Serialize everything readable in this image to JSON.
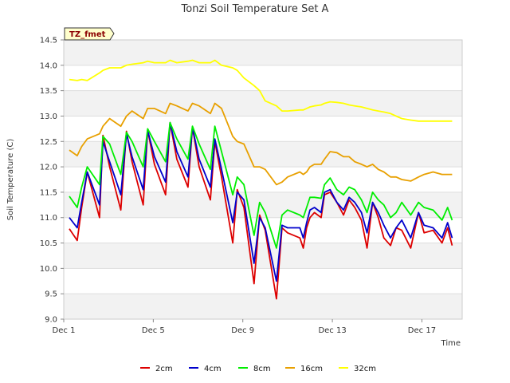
{
  "chart_data": {
    "type": "line",
    "title": "Tonzi Soil Temperature Set A",
    "xlabel": "Time",
    "ylabel": "Soil Temperature (C)",
    "site_tag": "TZ_fmet",
    "xlim": [
      1.0,
      18.8
    ],
    "ylim": [
      9.0,
      14.5
    ],
    "y_ticks": [
      "9.0",
      "9.5",
      "10.0",
      "10.5",
      "11.0",
      "11.5",
      "12.0",
      "12.5",
      "13.0",
      "13.5",
      "14.0",
      "14.5"
    ],
    "x_ticks": [
      {
        "value": 1,
        "label": "Dec 1"
      },
      {
        "value": 5,
        "label": "Dec 5"
      },
      {
        "value": 9,
        "label": "Dec 9"
      },
      {
        "value": 13,
        "label": "Dec 13"
      },
      {
        "value": 17,
        "label": "Dec 17"
      }
    ],
    "legend": [
      "2cm",
      "4cm",
      "8cm",
      "16cm",
      "32cm"
    ],
    "x": [
      1.25,
      1.6,
      1.8,
      2.05,
      2.6,
      2.75,
      3.05,
      3.55,
      3.8,
      4.05,
      4.55,
      4.75,
      5.05,
      5.55,
      5.75,
      6.05,
      6.55,
      6.75,
      7.05,
      7.55,
      7.75,
      8.05,
      8.55,
      8.75,
      9.05,
      9.5,
      9.75,
      10.0,
      10.5,
      10.75,
      11.0,
      11.55,
      11.7,
      11.85,
      12.0,
      12.2,
      12.5,
      12.65,
      12.9,
      13.2,
      13.5,
      13.75,
      14.0,
      14.3,
      14.55,
      14.8,
      15.05,
      15.3,
      15.6,
      15.85,
      16.1,
      16.5,
      16.85,
      17.1,
      17.5,
      17.9,
      18.15,
      18.35
    ],
    "series": [
      {
        "name": "2cm",
        "color": "#dd0000",
        "values": [
          10.78,
          10.55,
          11.2,
          11.9,
          11.0,
          12.62,
          12.0,
          11.15,
          12.7,
          12.1,
          11.25,
          12.72,
          12.05,
          11.45,
          12.87,
          12.15,
          11.6,
          12.78,
          12.0,
          11.35,
          12.5,
          11.8,
          10.5,
          11.55,
          11.2,
          9.7,
          11.05,
          10.75,
          9.4,
          10.8,
          10.7,
          10.6,
          10.4,
          10.8,
          11.0,
          11.1,
          11.0,
          11.45,
          11.5,
          11.3,
          11.05,
          11.35,
          11.2,
          10.95,
          10.4,
          11.3,
          11.0,
          10.6,
          10.45,
          10.8,
          10.75,
          10.4,
          11.1,
          10.7,
          10.75,
          10.5,
          10.8,
          10.45
        ]
      },
      {
        "name": "4cm",
        "color": "#0000cc",
        "values": [
          11.0,
          10.8,
          11.3,
          11.9,
          11.25,
          12.5,
          12.1,
          11.45,
          12.65,
          12.2,
          11.55,
          12.72,
          12.2,
          11.7,
          12.87,
          12.3,
          11.8,
          12.78,
          12.15,
          11.6,
          12.55,
          11.95,
          10.9,
          11.5,
          11.35,
          10.1,
          11.0,
          10.8,
          9.75,
          10.85,
          10.8,
          10.8,
          10.6,
          10.9,
          11.15,
          11.2,
          11.1,
          11.5,
          11.55,
          11.3,
          11.15,
          11.4,
          11.3,
          11.1,
          10.7,
          11.3,
          11.1,
          10.85,
          10.6,
          10.8,
          10.95,
          10.6,
          11.1,
          10.85,
          10.8,
          10.6,
          10.9,
          10.6
        ]
      },
      {
        "name": "8cm",
        "color": "#00ee00",
        "values": [
          11.42,
          11.2,
          11.6,
          12.0,
          11.65,
          12.6,
          12.45,
          11.85,
          12.68,
          12.5,
          12.0,
          12.75,
          12.5,
          12.1,
          12.87,
          12.55,
          12.15,
          12.8,
          12.45,
          11.95,
          12.8,
          12.3,
          11.45,
          11.8,
          11.65,
          10.65,
          11.3,
          11.1,
          10.4,
          11.05,
          11.15,
          11.05,
          11.0,
          11.2,
          11.4,
          11.4,
          11.38,
          11.65,
          11.78,
          11.55,
          11.45,
          11.6,
          11.55,
          11.35,
          11.1,
          11.5,
          11.35,
          11.25,
          11.0,
          11.1,
          11.3,
          11.05,
          11.3,
          11.2,
          11.15,
          10.95,
          11.2,
          10.95
        ]
      },
      {
        "name": "16cm",
        "color": "#e8a000",
        "values": [
          12.33,
          12.22,
          12.4,
          12.55,
          12.65,
          12.8,
          12.95,
          12.8,
          13.0,
          13.1,
          12.95,
          13.15,
          13.15,
          13.05,
          13.25,
          13.2,
          13.1,
          13.25,
          13.2,
          13.05,
          13.25,
          13.15,
          12.6,
          12.5,
          12.45,
          12.0,
          12.0,
          11.95,
          11.65,
          11.7,
          11.8,
          11.9,
          11.85,
          11.9,
          12.0,
          12.05,
          12.05,
          12.15,
          12.3,
          12.28,
          12.2,
          12.2,
          12.1,
          12.05,
          12.0,
          12.05,
          11.95,
          11.9,
          11.8,
          11.8,
          11.75,
          11.72,
          11.8,
          11.85,
          11.9,
          11.85,
          11.85,
          11.85
        ]
      },
      {
        "name": "32cm",
        "color": "#ffff00",
        "values": [
          13.72,
          13.7,
          13.72,
          13.7,
          13.85,
          13.9,
          13.95,
          13.95,
          14.0,
          14.02,
          14.05,
          14.08,
          14.05,
          14.05,
          14.1,
          14.05,
          14.08,
          14.1,
          14.05,
          14.05,
          14.1,
          14.0,
          13.95,
          13.9,
          13.75,
          13.6,
          13.5,
          13.3,
          13.2,
          13.1,
          13.1,
          13.12,
          13.12,
          13.15,
          13.18,
          13.2,
          13.22,
          13.25,
          13.28,
          13.27,
          13.25,
          13.22,
          13.2,
          13.18,
          13.15,
          13.12,
          13.1,
          13.08,
          13.05,
          13.0,
          12.95,
          12.92,
          12.9,
          12.9,
          12.9,
          12.9,
          12.9,
          12.9
        ]
      }
    ]
  }
}
